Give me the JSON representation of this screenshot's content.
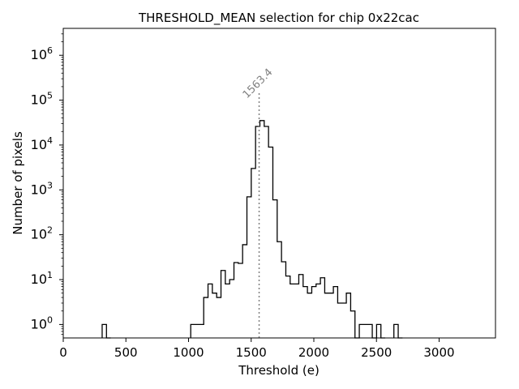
{
  "chart_data": {
    "type": "histogram",
    "title": "THRESHOLD_MEAN selection for chip 0x22cac",
    "xlabel": "Threshold (e)",
    "ylabel": "Number of pixels",
    "xlim": [
      0,
      3450
    ],
    "ylim_log10": [
      -0.3,
      6.6
    ],
    "x_ticks": [
      0,
      500,
      1000,
      1500,
      2000,
      2500,
      3000
    ],
    "x_tick_labels": [
      "0",
      "500",
      "1000",
      "1500",
      "2000",
      "2500",
      "3000"
    ],
    "y_ticks": [
      1,
      10,
      100,
      1000,
      10000,
      100000,
      1000000
    ],
    "y_tick_labels": [
      {
        "base": "10",
        "exp": "0"
      },
      {
        "base": "10",
        "exp": "1"
      },
      {
        "base": "10",
        "exp": "2"
      },
      {
        "base": "10",
        "exp": "3"
      },
      {
        "base": "10",
        "exp": "4"
      },
      {
        "base": "10",
        "exp": "5"
      },
      {
        "base": "10",
        "exp": "6"
      }
    ],
    "bin_width": 34.5,
    "bins": [
      [
        310.5,
        1
      ],
      [
        345.0,
        0
      ],
      [
        1017.5,
        1
      ],
      [
        1052.0,
        1
      ],
      [
        1086.5,
        1
      ],
      [
        1121.0,
        4
      ],
      [
        1155.5,
        8
      ],
      [
        1190.0,
        5
      ],
      [
        1224.5,
        4
      ],
      [
        1259.0,
        16
      ],
      [
        1293.5,
        8
      ],
      [
        1328.0,
        10
      ],
      [
        1362.5,
        24
      ],
      [
        1397.0,
        23
      ],
      [
        1431.5,
        60
      ],
      [
        1466.0,
        700
      ],
      [
        1500.5,
        3000
      ],
      [
        1535.0,
        26000
      ],
      [
        1569.5,
        35000
      ],
      [
        1604.0,
        26000
      ],
      [
        1638.5,
        9000
      ],
      [
        1673.0,
        600
      ],
      [
        1707.5,
        70
      ],
      [
        1742.0,
        25
      ],
      [
        1776.5,
        12
      ],
      [
        1811.0,
        8
      ],
      [
        1845.5,
        8
      ],
      [
        1880.0,
        13
      ],
      [
        1914.5,
        7
      ],
      [
        1949.0,
        5
      ],
      [
        1983.5,
        7
      ],
      [
        2018.0,
        8
      ],
      [
        2052.5,
        11
      ],
      [
        2087.0,
        5
      ],
      [
        2121.5,
        5
      ],
      [
        2156.0,
        7
      ],
      [
        2190.5,
        3
      ],
      [
        2225.0,
        3
      ],
      [
        2259.5,
        5
      ],
      [
        2294.0,
        2
      ],
      [
        2328.5,
        0
      ],
      [
        2363.0,
        1
      ],
      [
        2397.5,
        1
      ],
      [
        2432.0,
        1
      ],
      [
        2466.5,
        0
      ],
      [
        2501.0,
        1
      ],
      [
        2535.5,
        0
      ],
      [
        2639.0,
        1
      ],
      [
        2673.5,
        0
      ]
    ],
    "vline": {
      "x": 1563.4,
      "label": "1563.4",
      "ymax": 150000,
      "color": "#808080"
    }
  }
}
